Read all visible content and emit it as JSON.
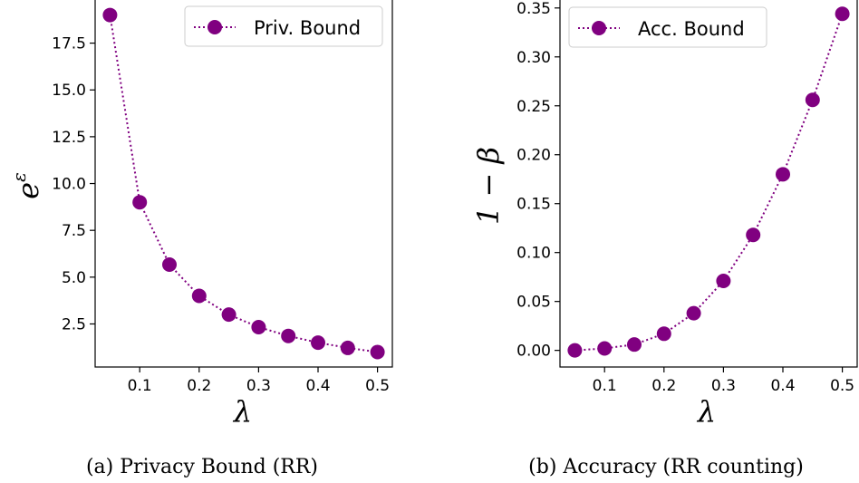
{
  "chart_data": [
    {
      "type": "line",
      "caption": "(a) Privacy Bound (RR)",
      "xlabel": "λ",
      "ylabel_base": "e",
      "ylabel_sup": "ε",
      "xlim": [
        0.025,
        0.525
      ],
      "ylim": [
        0.2,
        19.9
      ],
      "xticks": [
        "0.1",
        "0.2",
        "0.3",
        "0.4",
        "0.5"
      ],
      "yticks": [
        "2.5",
        "5.0",
        "7.5",
        "10.0",
        "12.5",
        "15.0",
        "17.5"
      ],
      "legend_position": "upper right",
      "grid": false,
      "color": "#800080",
      "series": [
        {
          "name": "Priv. Bound",
          "x": [
            0.05,
            0.1,
            0.15,
            0.2,
            0.25,
            0.3,
            0.35,
            0.4,
            0.45,
            0.5
          ],
          "y": [
            19.0,
            9.0,
            5.67,
            4.0,
            3.0,
            2.33,
            1.86,
            1.5,
            1.22,
            1.0
          ]
        }
      ]
    },
    {
      "type": "line",
      "caption": "(b) Accuracy (RR counting)",
      "xlabel": "λ",
      "ylabel_base": "1 − β",
      "xlim": [
        0.025,
        0.525
      ],
      "ylim": [
        -0.017,
        0.36
      ],
      "xticks": [
        "0.1",
        "0.2",
        "0.3",
        "0.4",
        "0.5"
      ],
      "yticks": [
        "0.00",
        "0.05",
        "0.10",
        "0.15",
        "0.20",
        "0.25",
        "0.30",
        "0.35"
      ],
      "legend_position": "upper left",
      "grid": false,
      "color": "#800080",
      "series": [
        {
          "name": "Acc. Bound",
          "x": [
            0.05,
            0.1,
            0.15,
            0.2,
            0.25,
            0.3,
            0.35,
            0.4,
            0.45,
            0.5
          ],
          "y": [
            0.0,
            0.002,
            0.006,
            0.017,
            0.038,
            0.071,
            0.118,
            0.18,
            0.256,
            0.344
          ]
        }
      ]
    }
  ]
}
